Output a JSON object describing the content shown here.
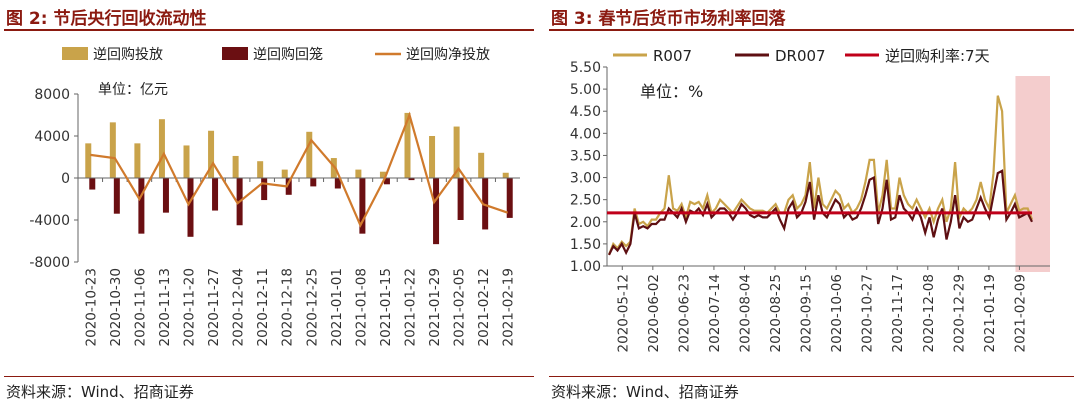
{
  "left": {
    "title": "图 2:  节后央行回收流动性",
    "source": "资料来源：Wind、招商证券",
    "colors": {
      "injection": "#c9a34a",
      "maturity": "#6b0f12",
      "net": "#d07a2c"
    },
    "chart_data": {
      "type": "bar",
      "title": "",
      "unit_label": "单位：亿元",
      "ylim": [
        -8000,
        8000
      ],
      "yticks": [
        8000,
        4000,
        0,
        -4000,
        -8000
      ],
      "categories": [
        "2020-10-23",
        "2020-10-30",
        "2020-11-06",
        "2020-11-13",
        "2020-11-20",
        "2020-11-27",
        "2020-12-04",
        "2020-12-11",
        "2020-12-18",
        "2020-12-25",
        "2021-01-01",
        "2021-01-08",
        "2021-01-15",
        "2021-01-22",
        "2021-01-29",
        "2021-02-05",
        "2021-02-12",
        "2021-02-19"
      ],
      "series": [
        {
          "name": "逆回购投放",
          "kind": "bar",
          "values": [
            3300,
            5300,
            3300,
            5600,
            3100,
            4500,
            2100,
            1600,
            800,
            4400,
            1900,
            800,
            600,
            6200,
            4000,
            4900,
            2400,
            500
          ]
        },
        {
          "name": "逆回购回笼",
          "kind": "bar",
          "values": [
            -1100,
            -3400,
            -5300,
            -3300,
            -5600,
            -3100,
            -4500,
            -2100,
            -1600,
            -800,
            -1000,
            -5300,
            -600,
            -200,
            -6300,
            -4000,
            -4900,
            -3800
          ]
        },
        {
          "name": "逆回购净投放",
          "kind": "line",
          "values": [
            2200,
            1900,
            -2000,
            2300,
            -2500,
            1400,
            -2400,
            -500,
            -800,
            3600,
            900,
            -4500,
            0,
            6000,
            -2300,
            900,
            -2500,
            -3300
          ]
        }
      ]
    }
  },
  "right": {
    "title": "图 3:  春节后货币市场利率回落",
    "source": "资料来源：Wind、招商证券",
    "colors": {
      "r007": "#c9a34a",
      "dr007": "#5e0f12",
      "policy": "#c0001a",
      "highlight": "#f2c4c4"
    },
    "chart_data": {
      "type": "line",
      "title": "",
      "unit_label": "单位：%",
      "ylim": [
        1.0,
        5.5
      ],
      "yticks": [
        "5.50",
        "5.00",
        "4.50",
        "4.00",
        "3.50",
        "3.00",
        "2.50",
        "2.00",
        "1.50",
        "1.00"
      ],
      "x_tick_labels": [
        "2020-05-12",
        "2020-06-02",
        "2020-06-23",
        "2020-07-14",
        "2020-08-04",
        "2020-08-25",
        "2020-09-15",
        "2020-10-06",
        "2020-10-27",
        "2020-11-17",
        "2020-12-08",
        "2020-12-29",
        "2021-01-19",
        "2021-02-09"
      ],
      "highlight_range": [
        "2021-02-05",
        "2021-02-26"
      ],
      "series": [
        {
          "name": "R007",
          "values": [
            1.25,
            1.5,
            1.4,
            1.55,
            1.45,
            1.55,
            2.3,
            1.95,
            2.0,
            1.9,
            2.05,
            2.05,
            2.2,
            2.3,
            3.05,
            2.3,
            2.25,
            2.4,
            2.1,
            2.45,
            2.4,
            2.45,
            2.3,
            2.6,
            2.2,
            2.3,
            2.5,
            2.4,
            2.3,
            2.2,
            2.35,
            2.5,
            2.4,
            2.3,
            2.25,
            2.25,
            2.25,
            2.2,
            2.3,
            2.4,
            2.2,
            2.2,
            2.5,
            2.6,
            2.3,
            2.4,
            2.6,
            3.35,
            2.3,
            3.0,
            2.4,
            2.3,
            2.5,
            2.7,
            2.6,
            2.3,
            2.4,
            2.2,
            2.3,
            2.5,
            2.9,
            3.4,
            3.4,
            2.2,
            2.6,
            3.4,
            2.3,
            2.3,
            3.0,
            2.6,
            2.4,
            2.3,
            2.5,
            2.3,
            2.1,
            2.3,
            2.0,
            2.3,
            2.5,
            2.0,
            2.3,
            3.35,
            2.1,
            2.3,
            2.2,
            2.3,
            2.5,
            2.9,
            2.5,
            2.3,
            3.1,
            4.85,
            4.5,
            2.2,
            2.4,
            2.6,
            2.25,
            2.3,
            2.3,
            2.05
          ]
        },
        {
          "name": "DR007",
          "values": [
            1.25,
            1.45,
            1.35,
            1.5,
            1.3,
            1.5,
            2.2,
            1.85,
            1.9,
            1.85,
            1.95,
            1.95,
            2.05,
            2.05,
            2.3,
            2.2,
            2.1,
            2.3,
            2.0,
            2.25,
            2.2,
            2.3,
            2.15,
            2.4,
            2.1,
            2.2,
            2.3,
            2.3,
            2.2,
            2.05,
            2.2,
            2.4,
            2.3,
            2.15,
            2.1,
            2.15,
            2.1,
            2.1,
            2.2,
            2.3,
            2.05,
            1.85,
            2.3,
            2.45,
            2.1,
            2.2,
            2.45,
            2.9,
            2.05,
            2.6,
            2.2,
            2.1,
            2.3,
            2.5,
            2.4,
            2.1,
            2.2,
            2.05,
            2.1,
            2.3,
            2.6,
            2.95,
            3.0,
            1.95,
            2.3,
            2.95,
            2.05,
            2.1,
            2.6,
            2.3,
            2.2,
            2.05,
            2.3,
            2.1,
            1.75,
            2.1,
            1.65,
            2.05,
            2.3,
            1.6,
            2.0,
            2.6,
            1.85,
            2.1,
            2.0,
            2.05,
            2.3,
            2.55,
            2.3,
            2.1,
            2.6,
            3.1,
            3.15,
            2.05,
            2.2,
            2.4,
            2.1,
            2.15,
            2.2,
            2.0
          ]
        },
        {
          "name": "逆回购利率:7天",
          "values": [
            2.2,
            2.2
          ]
        }
      ]
    }
  }
}
